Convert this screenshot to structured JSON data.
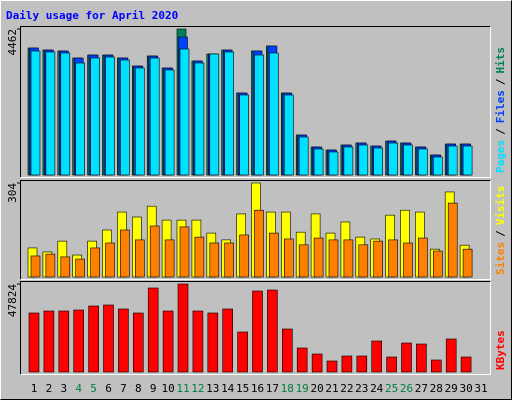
{
  "title": "Daily usage for April 2020",
  "legend_separator": "/",
  "chart_data": [
    {
      "type": "bar",
      "ylim": [
        0,
        4462
      ],
      "yticks": [
        4462
      ],
      "series": [
        {
          "name": "Hits",
          "color": "#00805c",
          "values": [
            3881,
            3820,
            3790,
            3576,
            3667,
            3667,
            3576,
            3331,
            3637,
            3270,
            4462,
            3484,
            3698,
            3820,
            2506,
            3790,
            3942,
            2506,
            1222,
            856,
            764,
            917,
            978,
            886,
            1039,
            978,
            856,
            611,
            947,
            947,
            null
          ]
        },
        {
          "name": "Files",
          "color": "#0040ff",
          "values": [
            3881,
            3820,
            3790,
            3576,
            3667,
            3667,
            3576,
            3331,
            3637,
            3270,
            4217,
            3484,
            3698,
            3820,
            2506,
            3790,
            3942,
            2506,
            1222,
            856,
            764,
            917,
            978,
            886,
            1039,
            978,
            856,
            611,
            947,
            947,
            null
          ]
        },
        {
          "name": "Pages",
          "color": "#00e0ff",
          "values": [
            3790,
            3759,
            3728,
            3423,
            3576,
            3606,
            3514,
            3270,
            3576,
            3209,
            3851,
            3423,
            3698,
            3759,
            2445,
            3667,
            3728,
            2445,
            1161,
            795,
            703,
            856,
            917,
            825,
            978,
            917,
            795,
            550,
            886,
            886,
            null
          ]
        }
      ]
    },
    {
      "type": "bar",
      "ylim": [
        0,
        304
      ],
      "yticks": [
        304
      ],
      "series": [
        {
          "name": "Visits",
          "color": "#ffff00",
          "values": [
            94,
            81,
            116,
            71,
            116,
            152,
            210,
            194,
            229,
            184,
            184,
            184,
            142,
            120,
            204,
            304,
            210,
            210,
            145,
            204,
            142,
            178,
            129,
            123,
            200,
            216,
            210,
            90,
            275,
            103,
            null
          ]
        },
        {
          "name": "Sites",
          "color": "#ff8000",
          "values": [
            68,
            74,
            65,
            58,
            94,
            110,
            152,
            120,
            165,
            120,
            162,
            129,
            110,
            110,
            136,
            216,
            142,
            123,
            104,
            126,
            120,
            120,
            104,
            116,
            120,
            110,
            126,
            84,
            239,
            90,
            null
          ]
        }
      ]
    },
    {
      "type": "bar",
      "ylim": [
        0,
        47824
      ],
      "yticks": [
        47824
      ],
      "categories": [
        "1",
        "2",
        "3",
        "4",
        "5",
        "6",
        "7",
        "8",
        "9",
        "10",
        "11",
        "12",
        "13",
        "14",
        "15",
        "16",
        "17",
        "18",
        "19",
        "20",
        "21",
        "22",
        "23",
        "24",
        "25",
        "26",
        "27",
        "28",
        "29",
        "30",
        "31"
      ],
      "tick_label_colors": [
        "#000000",
        "#000000",
        "#000000",
        "#008040",
        "#008040",
        "#000000",
        "#000000",
        "#000000",
        "#000000",
        "#000000",
        "#008040",
        "#008040",
        "#000000",
        "#000000",
        "#000000",
        "#000000",
        "#000000",
        "#008040",
        "#008040",
        "#000000",
        "#000000",
        "#000000",
        "#000000",
        "#000000",
        "#008040",
        "#008040",
        "#000000",
        "#000000",
        "#000000",
        "#000000",
        "#000000"
      ],
      "series": [
        {
          "name": "KBytes",
          "color": "#ff0000",
          "values": [
            32064,
            33151,
            33151,
            33694,
            35868,
            36412,
            34238,
            32064,
            45650,
            33151,
            47824,
            33151,
            32064,
            34238,
            21740,
            44020,
            44563,
            23370,
            13044,
            9783,
            5979,
            8696,
            8696,
            16849,
            8152,
            15762,
            15218,
            6522,
            17935,
            8152,
            null
          ]
        }
      ]
    }
  ]
}
